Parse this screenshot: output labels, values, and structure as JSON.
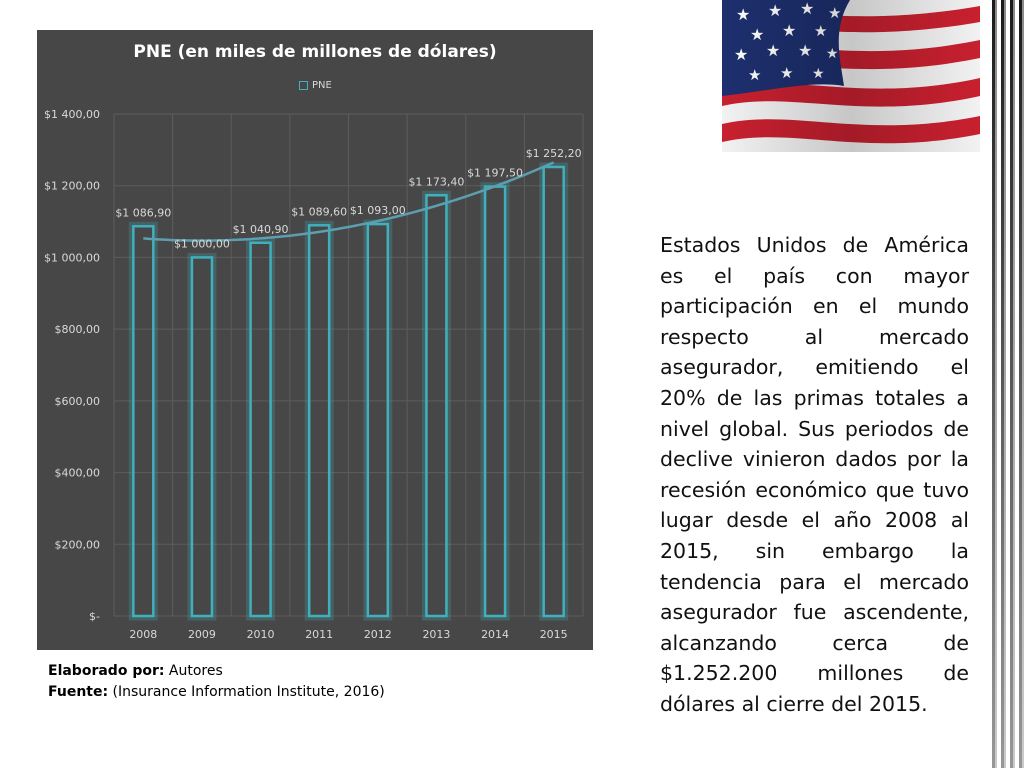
{
  "chart_data": {
    "type": "bar",
    "title": "PNE (en miles de millones de dólares)",
    "legend": [
      "PNE"
    ],
    "legend_position": "top",
    "categories": [
      "2008",
      "2009",
      "2010",
      "2011",
      "2012",
      "2013",
      "2014",
      "2015"
    ],
    "series": [
      {
        "name": "PNE",
        "values": [
          1086.9,
          1000.0,
          1040.9,
          1089.6,
          1093.0,
          1173.4,
          1197.5,
          1252.2
        ],
        "data_labels": [
          "$1 086,90",
          "$1 000,00",
          "$1 040,90",
          "$1 089,60",
          "$1 093,00",
          "$1 173,40",
          "$1 197,50",
          "$1 252,20"
        ]
      }
    ],
    "trendline": "polynomial",
    "ylim": [
      0,
      1400
    ],
    "ytick_labels": [
      "$-",
      "$200,00",
      "$400,00",
      "$600,00",
      "$800,00",
      "$1 000,00",
      "$1 200,00",
      "$1 400,00"
    ],
    "grid": true,
    "colors": {
      "background": "#474747",
      "bar_outline": "#3fb0bd",
      "trendline": "#5b9fb0",
      "grid": "#5c5c5c",
      "text": "#d9d9d9"
    }
  },
  "credits": {
    "made_by_label": "Elaborado por:",
    "made_by_value": " Autores",
    "source_label": "Fuente:",
    "source_value": " (Insurance Information Institute, 2016)"
  },
  "flag": {
    "icon": "us-flag-image"
  },
  "body_text": "Estados Unidos de América es el país con mayor participación en el mundo respecto al mercado asegurador, emitiendo el 20% de las primas totales a nivel global. Sus periodos de declive vinieron dados por la recesión económico que tuvo lugar desde el año 2008 al 2015, sin embargo la tendencia para el mercado asegurador fue ascendente, alcanzando cerca de $1.252.200 millones de dólares al cierre del 2015."
}
